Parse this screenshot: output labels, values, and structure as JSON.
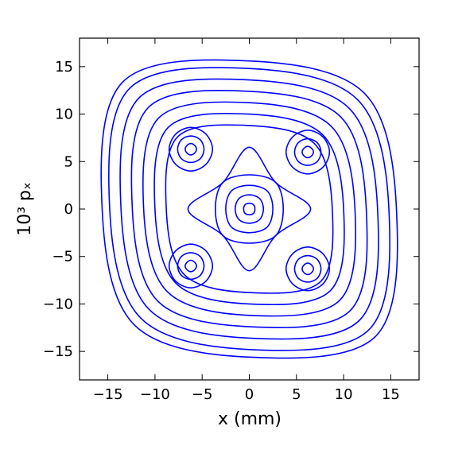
{
  "chart_data": {
    "type": "phase",
    "x_label": "x (mm)",
    "y_label": "10³ pₓ",
    "color": "#0000ff",
    "xlim": [
      -18,
      18
    ],
    "ylim": [
      -18,
      18
    ],
    "xticks": [
      {
        "value": -15,
        "label": "−15"
      },
      {
        "value": -10,
        "label": "−10"
      },
      {
        "value": -5,
        "label": "−5"
      },
      0,
      5,
      10,
      15
    ],
    "yticks": [
      {
        "value": -15,
        "label": "−15"
      },
      {
        "value": -10,
        "label": "−10"
      },
      {
        "value": -5,
        "label": "−5"
      },
      0,
      5,
      10,
      15
    ],
    "curves": [
      {
        "x": [
          0.6,
          0.45,
          0,
          -0.45,
          -0.6,
          -0.45,
          0,
          0.45
        ],
        "y": [
          0,
          0.45,
          0.6,
          0.45,
          0,
          -0.45,
          -0.6,
          -0.45
        ]
      },
      {
        "x": [
          1.5,
          1.1,
          0,
          -1.1,
          -1.5,
          -1.1,
          0,
          1.1
        ],
        "y": [
          0,
          1.1,
          1.5,
          1.1,
          0,
          -1.1,
          -1.5,
          -1.1
        ]
      },
      {
        "x": [
          2.5,
          1.9,
          0,
          -1.9,
          -2.5,
          -1.9,
          0,
          1.9
        ],
        "y": [
          0,
          1.9,
          2.5,
          1.9,
          0,
          -1.9,
          -2.5,
          -1.9
        ]
      },
      {
        "x": [
          3.6,
          2.8,
          0,
          -2.8,
          -3.6,
          -2.8,
          0,
          2.8
        ],
        "y": [
          0,
          2.8,
          3.6,
          2.8,
          0,
          -2.8,
          -3.6,
          -2.8
        ]
      },
      {
        "x": [
          6.5,
          2.8,
          0,
          -2.8,
          -6.5,
          -2.8,
          0,
          2.8
        ],
        "y": [
          0,
          2.8,
          6.5,
          2.8,
          0,
          -2.8,
          -6.5,
          -2.8
        ]
      },
      {
        "x": [
          6.8,
          6.6,
          6.2,
          5.8,
          5.6,
          5.8,
          6.2,
          6.6
        ],
        "y": [
          6.0,
          6.4,
          6.6,
          6.4,
          6.0,
          5.6,
          5.4,
          5.6
        ]
      },
      {
        "x": [
          7.6,
          7.2,
          6.2,
          5.2,
          4.8,
          5.2,
          6.2,
          7.2
        ],
        "y": [
          6.0,
          7.0,
          7.4,
          7.0,
          6.0,
          5.0,
          4.6,
          5.0
        ]
      },
      {
        "x": [
          8.5,
          7.8,
          6.2,
          4.6,
          3.9,
          4.6,
          6.2,
          7.8
        ],
        "y": [
          6.0,
          7.6,
          8.3,
          7.6,
          6.0,
          4.4,
          3.7,
          4.4
        ]
      },
      {
        "x": [
          -5.6,
          -5.8,
          -6.2,
          -6.6,
          -6.8,
          -6.6,
          -6.2,
          -5.8
        ],
        "y": [
          6.3,
          6.7,
          6.9,
          6.7,
          6.3,
          5.9,
          5.7,
          5.9
        ]
      },
      {
        "x": [
          -4.8,
          -5.2,
          -6.2,
          -7.2,
          -7.6,
          -7.2,
          -6.2,
          -5.2
        ],
        "y": [
          6.3,
          7.3,
          7.7,
          7.3,
          6.3,
          5.3,
          4.9,
          5.3
        ]
      },
      {
        "x": [
          -3.9,
          -4.6,
          -6.2,
          -7.8,
          -8.5,
          -7.8,
          -6.2,
          -4.6
        ],
        "y": [
          6.3,
          7.9,
          8.6,
          7.9,
          6.3,
          4.7,
          4.0,
          4.7
        ]
      },
      {
        "x": [
          -5.6,
          -5.8,
          -6.2,
          -6.6,
          -6.8,
          -6.6,
          -6.2,
          -5.8
        ],
        "y": [
          -6.0,
          -5.6,
          -5.4,
          -5.6,
          -6.0,
          -6.4,
          -6.6,
          -6.4
        ]
      },
      {
        "x": [
          -4.8,
          -5.2,
          -6.2,
          -7.2,
          -7.6,
          -7.2,
          -6.2,
          -5.2
        ],
        "y": [
          -6.0,
          -5.0,
          -4.6,
          -5.0,
          -6.0,
          -7.0,
          -7.4,
          -7.0
        ]
      },
      {
        "x": [
          -3.9,
          -4.6,
          -6.2,
          -7.8,
          -8.5,
          -7.8,
          -6.2,
          -4.6
        ],
        "y": [
          -6.0,
          -4.4,
          -3.7,
          -4.4,
          -6.0,
          -7.6,
          -8.3,
          -7.6
        ]
      },
      {
        "x": [
          6.8,
          6.6,
          6.2,
          5.8,
          5.6,
          5.8,
          6.2,
          6.6
        ],
        "y": [
          -6.3,
          -5.9,
          -5.7,
          -5.9,
          -6.3,
          -6.7,
          -6.9,
          -6.7
        ]
      },
      {
        "x": [
          7.6,
          7.2,
          6.2,
          5.2,
          4.8,
          5.2,
          6.2,
          7.2
        ],
        "y": [
          -6.3,
          -5.3,
          -4.9,
          -5.3,
          -6.3,
          -7.3,
          -7.7,
          -7.3
        ]
      },
      {
        "x": [
          8.5,
          7.8,
          6.2,
          4.6,
          3.9,
          4.6,
          6.2,
          7.8
        ],
        "y": [
          -6.3,
          -4.7,
          -4.0,
          -4.7,
          -6.3,
          -7.9,
          -8.6,
          -7.9
        ]
      },
      {
        "x": [
          8.8,
          6.9,
          0,
          -7.6,
          -8.8,
          -6.9,
          0,
          7.6
        ],
        "y": [
          0,
          6.9,
          8.8,
          7.6,
          0,
          -6.9,
          -8.8,
          -7.6
        ]
      },
      {
        "x": [
          10.0,
          7.8,
          0,
          -8.6,
          -10.0,
          -7.8,
          0,
          8.6
        ],
        "y": [
          0,
          7.8,
          10.0,
          8.6,
          0,
          -7.8,
          -10.0,
          -8.6
        ]
      },
      {
        "x": [
          11.2,
          8.7,
          0,
          -9.6,
          -11.2,
          -8.7,
          0,
          9.6
        ],
        "y": [
          0,
          8.7,
          11.2,
          9.6,
          0,
          -8.7,
          -11.2,
          -9.6
        ]
      },
      {
        "x": [
          12.4,
          9.7,
          0,
          -10.7,
          -12.4,
          -9.7,
          0,
          10.7
        ],
        "y": [
          0,
          9.7,
          12.4,
          10.7,
          0,
          -9.7,
          -12.4,
          -10.7
        ]
      },
      {
        "x": [
          13.6,
          10.6,
          0,
          -11.7,
          -13.6,
          -10.6,
          0,
          11.7
        ],
        "y": [
          0,
          10.6,
          13.6,
          11.7,
          0,
          -10.6,
          -13.6,
          -11.7
        ]
      },
      {
        "x": [
          14.8,
          11.5,
          0,
          -12.7,
          -14.8,
          -11.5,
          0,
          12.7
        ],
        "y": [
          0,
          11.5,
          14.8,
          12.7,
          0,
          -11.5,
          -14.8,
          -12.7
        ]
      },
      {
        "x": [
          15.6,
          12.2,
          0,
          -13.4,
          -15.6,
          -12.2,
          0,
          13.4
        ],
        "y": [
          0,
          12.2,
          15.6,
          13.4,
          0,
          -12.2,
          -15.6,
          -13.4
        ]
      }
    ]
  }
}
